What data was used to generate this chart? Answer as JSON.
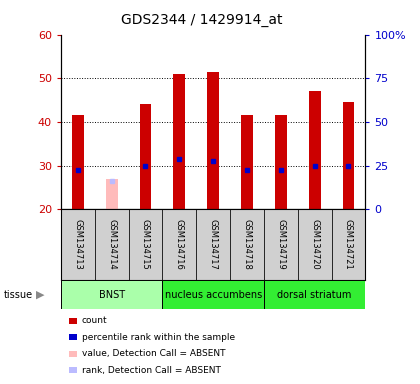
{
  "title": "GDS2344 / 1429914_at",
  "samples": [
    "GSM134713",
    "GSM134714",
    "GSM134715",
    "GSM134716",
    "GSM134717",
    "GSM134718",
    "GSM134719",
    "GSM134720",
    "GSM134721"
  ],
  "count_values": [
    41.5,
    null,
    44.0,
    51.0,
    51.5,
    41.5,
    41.5,
    47.0,
    44.5
  ],
  "rank_values": [
    29.0,
    null,
    30.0,
    31.5,
    31.0,
    29.0,
    29.0,
    30.0,
    30.0
  ],
  "absent_count": [
    null,
    27.0,
    null,
    null,
    null,
    null,
    null,
    null,
    null
  ],
  "absent_rank": [
    null,
    26.5,
    null,
    null,
    null,
    null,
    null,
    null,
    null
  ],
  "ymin": 20,
  "ymax": 60,
  "yticks_left": [
    20,
    30,
    40,
    50,
    60
  ],
  "right_tick_positions": [
    20,
    30,
    40,
    50,
    60
  ],
  "right_yticklabels": [
    "0",
    "25",
    "50",
    "75",
    "100%"
  ],
  "tissue_groups": [
    {
      "label": "BNST",
      "start": 0,
      "end": 3,
      "color": "#aaffaa"
    },
    {
      "label": "nucleus accumbens",
      "start": 3,
      "end": 6,
      "color": "#33ee33"
    },
    {
      "label": "dorsal striatum",
      "start": 6,
      "end": 9,
      "color": "#33ee33"
    }
  ],
  "bar_color": "#cc0000",
  "rank_color": "#0000cc",
  "absent_bar_color": "#ffbbbb",
  "absent_rank_color": "#bbbbff",
  "bg_color": "#ffffff",
  "sample_box_color": "#d0d0d0",
  "tick_color_left": "#cc0000",
  "tick_color_right": "#0000cc",
  "bar_width": 0.35,
  "legend_items": [
    {
      "color": "#cc0000",
      "label": "count"
    },
    {
      "color": "#0000cc",
      "label": "percentile rank within the sample"
    },
    {
      "color": "#ffbbbb",
      "label": "value, Detection Call = ABSENT"
    },
    {
      "color": "#bbbbff",
      "label": "rank, Detection Call = ABSENT"
    }
  ]
}
